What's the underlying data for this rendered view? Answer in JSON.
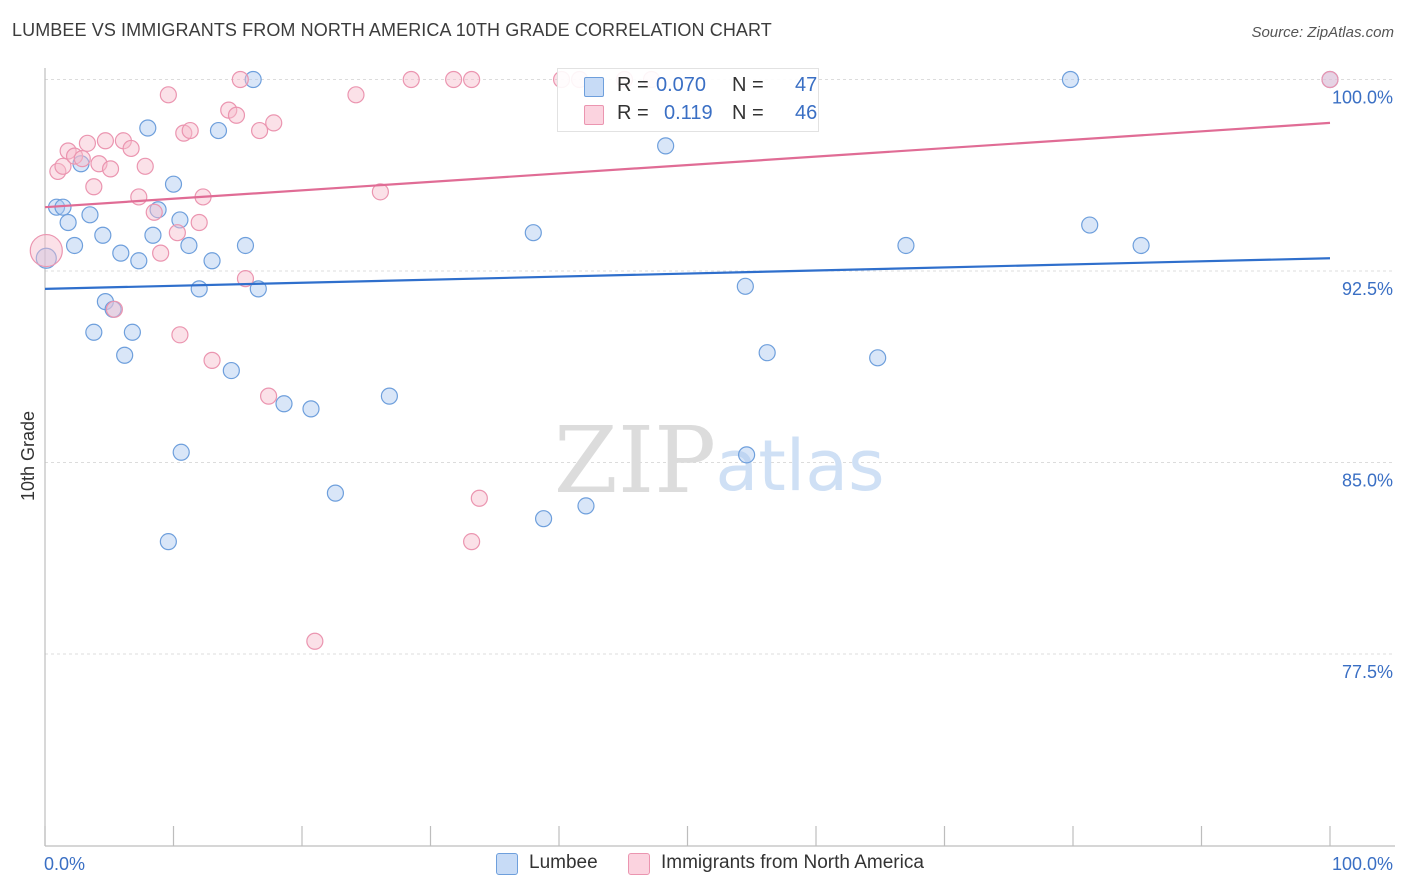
{
  "header": {
    "title": "LUMBEE VS IMMIGRANTS FROM NORTH AMERICA 10TH GRADE CORRELATION CHART",
    "source": "Source: ZipAtlas.com"
  },
  "watermark": {
    "zip": "ZIP",
    "atlas": "atlas"
  },
  "colors": {
    "blue_fill": "#aac8f0",
    "blue_stroke": "#6e9fdc",
    "blue_line": "#2f6fcc",
    "pink_fill": "#f6bccd",
    "pink_stroke": "#eb95b0",
    "pink_line": "#e06c95",
    "tick_label": "#3a6fc4",
    "grid": "#dcdcdc"
  },
  "legend": {
    "rows": [
      {
        "r_label": "R =",
        "r_value": "0.070",
        "n_label": "N =",
        "n_value": "47"
      },
      {
        "r_label": "R =",
        "r_value": "0.119",
        "n_label": "N =",
        "n_value": "46"
      }
    ]
  },
  "bottom_legend": [
    "Lumbee",
    "Immigrants from North America"
  ],
  "chart_data": {
    "type": "scatter",
    "title": "LUMBEE VS IMMIGRANTS FROM NORTH AMERICA 10TH GRADE CORRELATION CHART",
    "ylabel": "10th Grade",
    "xlabel": "",
    "xlim": [
      0,
      100
    ],
    "ylim": [
      70.0,
      101.0
    ],
    "x_ticks": [
      0,
      10,
      20,
      30,
      40,
      50,
      60,
      70,
      80,
      90,
      100
    ],
    "x_tick_labels": [
      "0.0%",
      "100.0%"
    ],
    "y_ticks": [
      77.5,
      85.0,
      92.5,
      100.0
    ],
    "y_tick_labels": [
      "77.5%",
      "85.0%",
      "92.5%",
      "100.0%"
    ],
    "grid": true,
    "legend_position": "top-center",
    "series": [
      {
        "name": "Lumbee",
        "r": 0.07,
        "n": 47,
        "trend": {
          "x": [
            0,
            100
          ],
          "y": [
            91.8,
            93.0
          ]
        },
        "points": [
          [
            0.1,
            93.0
          ],
          [
            0.9,
            95.0
          ],
          [
            1.4,
            95.0
          ],
          [
            1.8,
            94.4
          ],
          [
            2.3,
            93.5
          ],
          [
            2.8,
            96.7
          ],
          [
            3.5,
            94.7
          ],
          [
            3.8,
            90.1
          ],
          [
            4.5,
            93.9
          ],
          [
            4.7,
            91.3
          ],
          [
            5.3,
            91.0
          ],
          [
            5.9,
            93.2
          ],
          [
            6.2,
            89.2
          ],
          [
            6.8,
            90.1
          ],
          [
            7.3,
            92.9
          ],
          [
            8.0,
            98.1
          ],
          [
            8.4,
            93.9
          ],
          [
            8.8,
            94.9
          ],
          [
            9.6,
            81.9
          ],
          [
            10.0,
            95.9
          ],
          [
            10.5,
            94.5
          ],
          [
            10.6,
            85.4
          ],
          [
            11.2,
            93.5
          ],
          [
            12.0,
            91.8
          ],
          [
            13.0,
            92.9
          ],
          [
            13.5,
            98.0
          ],
          [
            14.5,
            88.6
          ],
          [
            15.6,
            93.5
          ],
          [
            16.2,
            100.0
          ],
          [
            16.6,
            91.8
          ],
          [
            18.6,
            87.3
          ],
          [
            20.7,
            87.1
          ],
          [
            22.6,
            83.8
          ],
          [
            26.8,
            87.6
          ],
          [
            38.0,
            94.0
          ],
          [
            38.8,
            82.8
          ],
          [
            42.1,
            83.3
          ],
          [
            48.3,
            97.4
          ],
          [
            54.5,
            91.9
          ],
          [
            54.6,
            85.3
          ],
          [
            56.2,
            89.3
          ],
          [
            64.8,
            89.1
          ],
          [
            67.0,
            93.5
          ],
          [
            79.8,
            100.0
          ],
          [
            81.3,
            94.3
          ],
          [
            85.3,
            93.5
          ],
          [
            100.0,
            100.0
          ]
        ]
      },
      {
        "name": "Immigrants from North America",
        "r": 0.119,
        "n": 46,
        "trend": {
          "x": [
            0,
            100
          ],
          "y": [
            95.0,
            98.3
          ]
        },
        "points": [
          [
            0.1,
            93.3
          ],
          [
            1.0,
            96.4
          ],
          [
            1.4,
            96.6
          ],
          [
            1.8,
            97.2
          ],
          [
            2.3,
            97.0
          ],
          [
            2.9,
            96.9
          ],
          [
            3.3,
            97.5
          ],
          [
            3.8,
            95.8
          ],
          [
            4.2,
            96.7
          ],
          [
            4.7,
            97.6
          ],
          [
            5.1,
            96.5
          ],
          [
            5.4,
            91.0
          ],
          [
            6.1,
            97.6
          ],
          [
            6.7,
            97.3
          ],
          [
            7.3,
            95.4
          ],
          [
            7.8,
            96.6
          ],
          [
            8.5,
            94.8
          ],
          [
            9.0,
            93.2
          ],
          [
            9.6,
            99.4
          ],
          [
            10.3,
            94.0
          ],
          [
            10.5,
            90.0
          ],
          [
            10.8,
            97.9
          ],
          [
            11.3,
            98.0
          ],
          [
            12.0,
            94.4
          ],
          [
            12.3,
            95.4
          ],
          [
            13.0,
            89.0
          ],
          [
            14.3,
            98.8
          ],
          [
            14.9,
            98.6
          ],
          [
            15.2,
            100.0
          ],
          [
            15.6,
            92.2
          ],
          [
            16.7,
            98.0
          ],
          [
            17.4,
            87.6
          ],
          [
            17.8,
            98.3
          ],
          [
            21.0,
            78.0
          ],
          [
            24.2,
            99.4
          ],
          [
            26.1,
            95.6
          ],
          [
            28.5,
            100.0
          ],
          [
            31.8,
            100.0
          ],
          [
            33.2,
            100.0
          ],
          [
            33.8,
            83.6
          ],
          [
            33.2,
            81.9
          ],
          [
            40.2,
            100.0
          ],
          [
            41.6,
            100.0
          ],
          [
            45.1,
            100.0
          ],
          [
            47.2,
            100.0
          ],
          [
            100.0,
            100.0
          ]
        ]
      }
    ]
  }
}
